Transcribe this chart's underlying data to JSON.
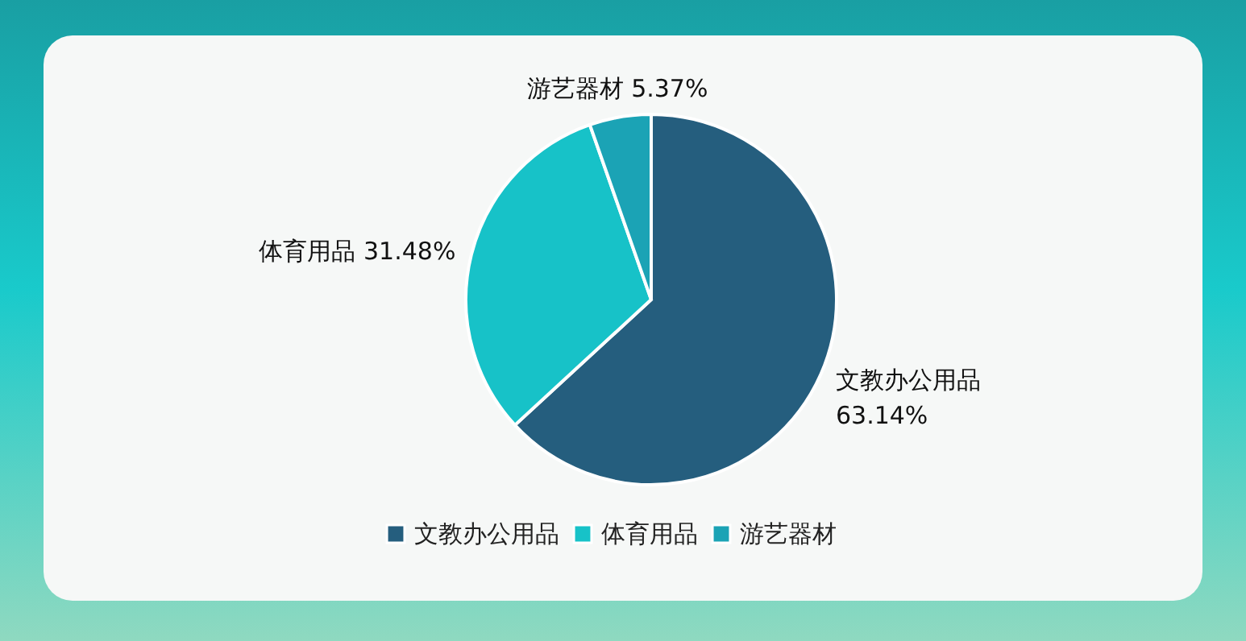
{
  "chart_data": {
    "type": "pie",
    "categories": [
      "文教办公用品",
      "体育用品",
      "游艺器材"
    ],
    "values": [
      63.14,
      31.48,
      5.37
    ],
    "colors": [
      "#255e7e",
      "#17c2c8",
      "#1ba3b5"
    ],
    "value_labels": [
      "63.14%",
      "31.48%",
      "5.37%"
    ],
    "legend": "bottom"
  }
}
